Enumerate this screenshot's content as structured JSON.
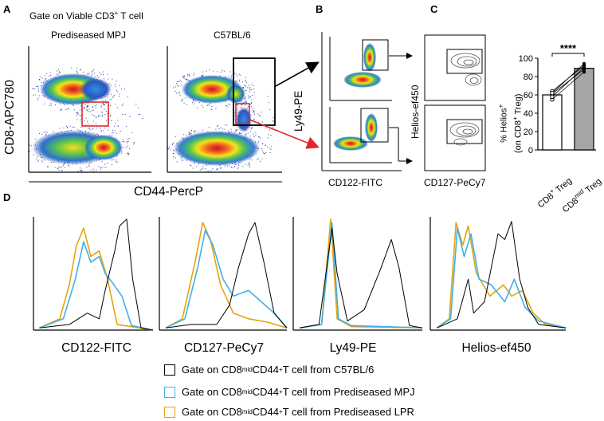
{
  "panels": {
    "a": "A",
    "b": "B",
    "c": "C",
    "d": "D"
  },
  "panel_a": {
    "gate_text": "Gate on Viable CD3",
    "gate_sup": "+",
    "gate_suffix": " T cell",
    "plot1_title": "Prediseased MPJ",
    "plot2_title": "C57BL/6",
    "y_label": "CD8-APC780",
    "x_label": "CD44-PercP"
  },
  "panel_b": {
    "y_label": "Ly49-PE",
    "x_label": "CD122-FITC"
  },
  "panel_c": {
    "y_label": "Helios-ef450",
    "x_label": "CD127-PeCy7"
  },
  "bar_chart": {
    "y_label_line1": "% Helios",
    "y_label_sup": "+",
    "y_label_line2": "(on CD8",
    "y_label_line2_sup": "+",
    "y_label_line2_end": " Treg)",
    "significance": "****"
  },
  "chart_data": {
    "type": "bar",
    "categories": [
      "CD8+ Treg",
      "CD8mid Treg"
    ],
    "category_labels": [
      {
        "base": "CD8",
        "sup": "+",
        "rest": " Treg"
      },
      {
        "base": "CD8",
        "sup": "mid",
        "rest": " Treg"
      }
    ],
    "values": [
      60,
      89
    ],
    "bar_colors": [
      "#ffffff",
      "#a6a6a6"
    ],
    "paired_points": [
      [
        55,
        85
      ],
      [
        61,
        88
      ],
      [
        64,
        92
      ],
      [
        58,
        90
      ],
      [
        62,
        94
      ]
    ],
    "ylim": [
      0,
      100
    ],
    "yticks": [
      "0",
      "20",
      "40",
      "60",
      "80",
      "100"
    ],
    "ytick_values": [
      0,
      20,
      40,
      60,
      80,
      100
    ]
  },
  "histograms": {
    "labels": [
      "CD122-FITC",
      "CD127-PeCy7",
      "Ly49-PE",
      "Helios-ef450"
    ]
  },
  "legend": {
    "items": [
      {
        "prefix": "Gate on CD8",
        "sup1": "mid",
        "mid": "CD44",
        "sup2": "+",
        "suffix": " T cell from C57BL/6",
        "color": "#000000"
      },
      {
        "prefix": "Gate on CD8",
        "sup1": "mid",
        "mid": "CD44",
        "sup2": "+",
        "suffix": " T cell from Prediseased MPJ",
        "color": "#3fb0e8"
      },
      {
        "prefix": "Gate on CD8",
        "sup1": "mid",
        "mid": "CD44",
        "sup2": "+",
        "suffix": " T cell from Prediseased LPR",
        "color": "#e8a30c"
      }
    ]
  },
  "colors": {
    "gate_red": "#e0282a",
    "black": "#000000",
    "blue": "#3fb0e8",
    "orange": "#e8a30c"
  }
}
